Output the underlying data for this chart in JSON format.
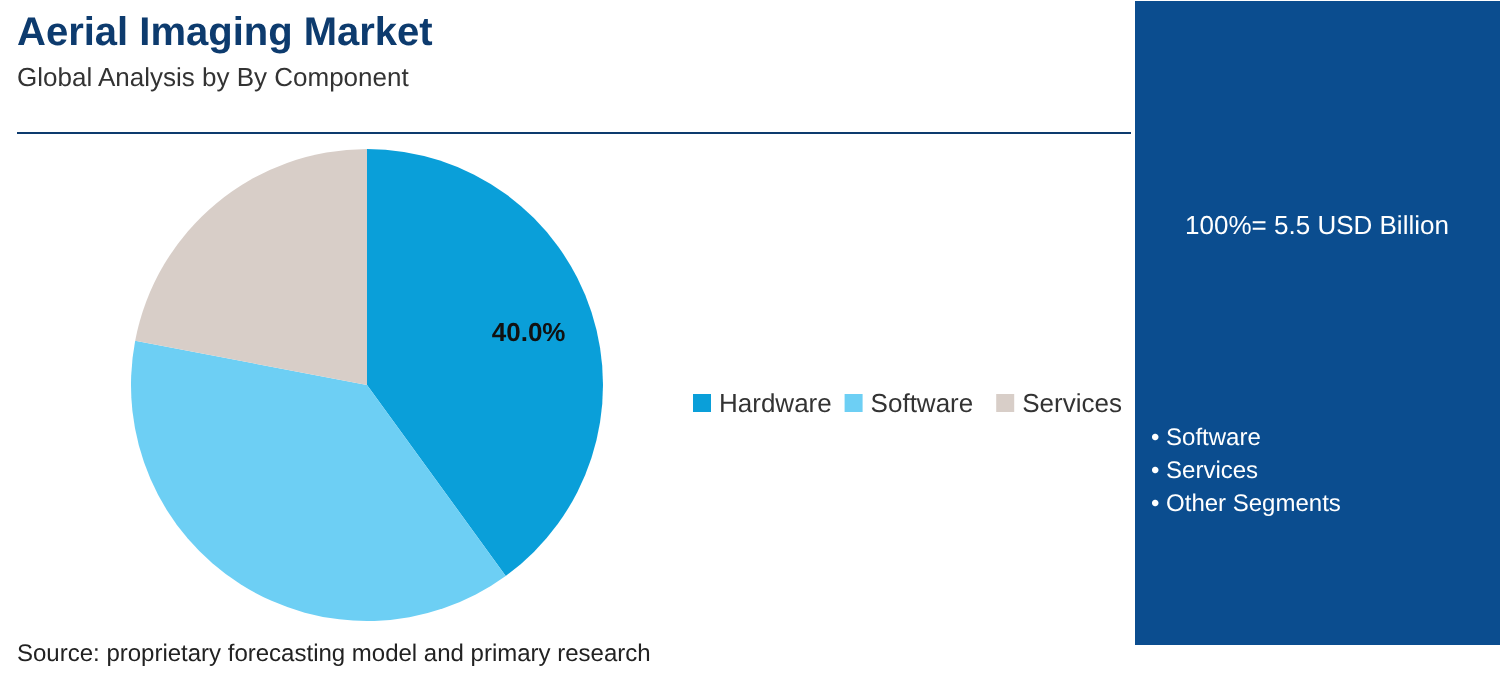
{
  "chart_data": {
    "type": "pie",
    "title": "Aerial Imaging Market",
    "subtitle": "Global Analysis by By Component",
    "categories": [
      "Hardware",
      "Software",
      "Services"
    ],
    "values": [
      40,
      38,
      22
    ],
    "colors": [
      "#0a9fd9",
      "#6dcff4",
      "#d8cec8"
    ],
    "value_labels": [
      "40.0%",
      null,
      null
    ],
    "legend": "right",
    "annotations": [
      "100%= 5.5 USD Billion",
      "• Software",
      "• Services",
      "• Other Segments",
      "Source: proprietary forecasting model and primary research"
    ]
  }
}
